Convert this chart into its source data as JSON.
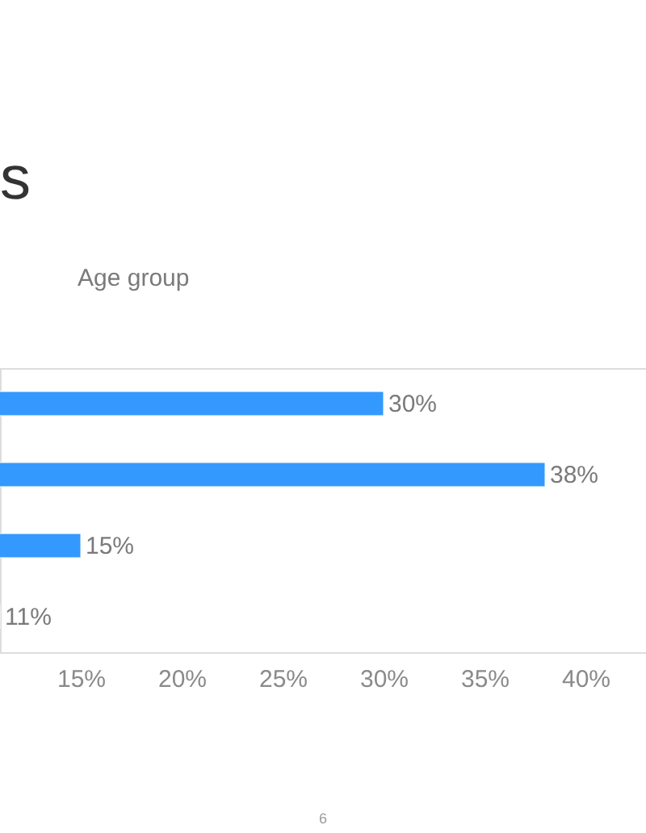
{
  "chart_data": {
    "type": "bar",
    "orientation": "horizontal",
    "title": "s",
    "subtitle": "Age group",
    "categories": [
      null,
      null,
      null,
      null
    ],
    "values": [
      30,
      38,
      15,
      11
    ],
    "color": "#3399ff",
    "data_labels": true,
    "value_labels": [
      "30%",
      "38%",
      "15%",
      "11%"
    ],
    "xlim": [
      11,
      43
    ],
    "xticks": [
      {
        "value": 15,
        "label": "15%"
      },
      {
        "value": 20,
        "label": "20%"
      },
      {
        "value": 25,
        "label": "25%"
      },
      {
        "value": 30,
        "label": "30%"
      },
      {
        "value": 35,
        "label": "35%"
      },
      {
        "value": 40,
        "label": "40%"
      }
    ],
    "grid": false,
    "annotations": [
      "6"
    ]
  }
}
